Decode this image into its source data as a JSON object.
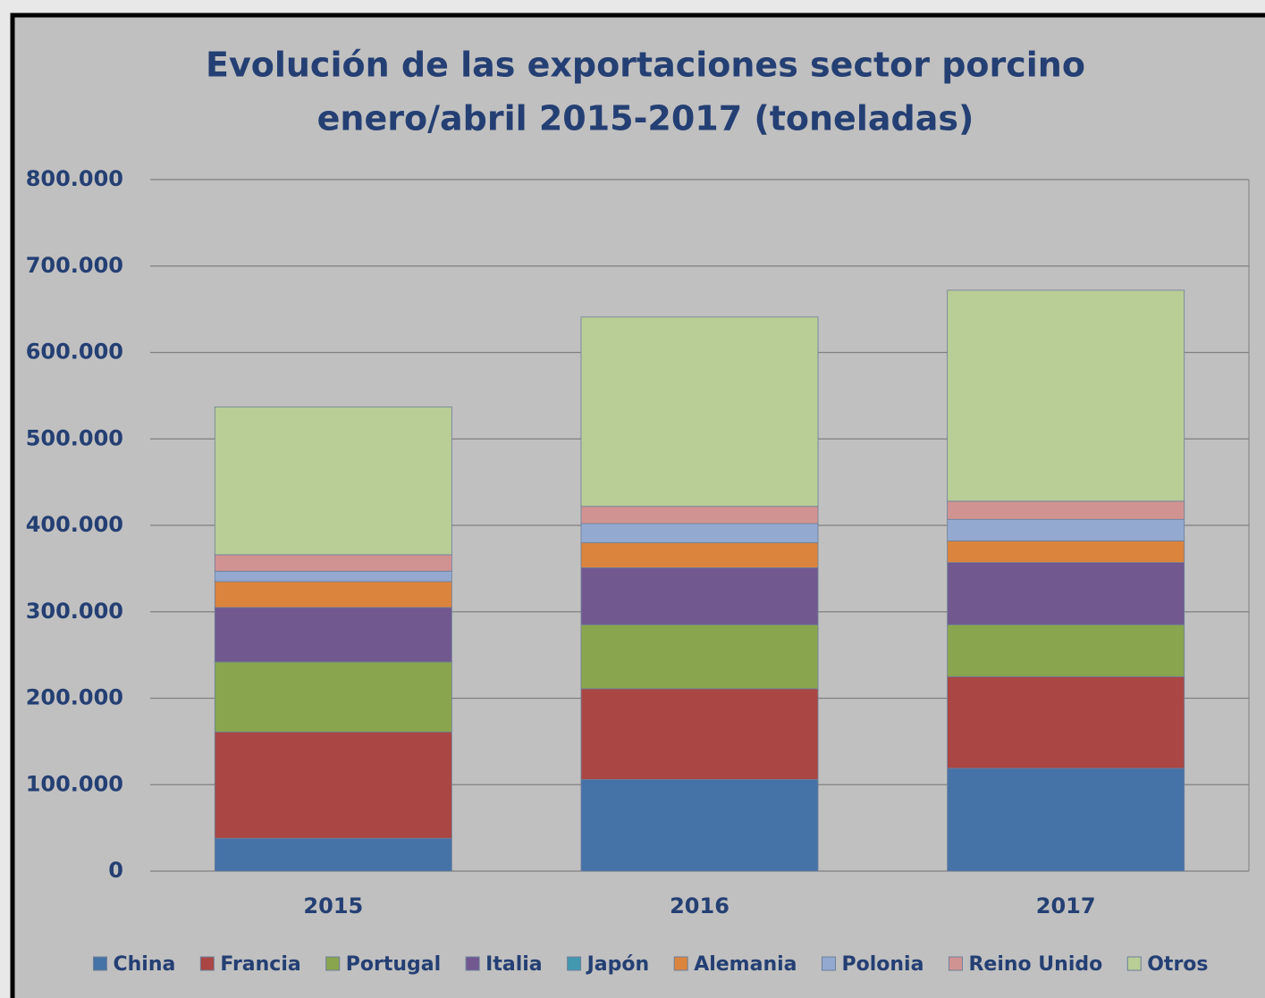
{
  "chart_data": {
    "type": "stacked_bar",
    "title": [
      "Evolución de las exportaciones sector porcino",
      "enero/abril 2015-2017 (toneladas)"
    ],
    "categories": [
      "2015",
      "2016",
      "2017"
    ],
    "series": [
      {
        "name": "China",
        "color": "#4572a7",
        "values": [
          38000,
          106000,
          119000
        ]
      },
      {
        "name": "Francia",
        "color": "#aa4643",
        "values": [
          123000,
          105000,
          106000
        ]
      },
      {
        "name": "Portugal",
        "color": "#89a54e",
        "values": [
          81000,
          74000,
          60000
        ]
      },
      {
        "name": "Italia",
        "color": "#71588f",
        "values": [
          63000,
          66000,
          72000
        ]
      },
      {
        "name": "Japón",
        "color": "#4198af",
        "values": [
          0,
          0,
          0
        ]
      },
      {
        "name": "Alemania",
        "color": "#db843d",
        "values": [
          30000,
          29000,
          25000
        ]
      },
      {
        "name": "Polonia",
        "color": "#93a9cf",
        "values": [
          12000,
          22000,
          25000
        ]
      },
      {
        "name": "Reino Unido",
        "color": "#d19392",
        "values": [
          19000,
          20000,
          21000
        ]
      },
      {
        "name": "Otros",
        "color": "#b9cd96",
        "values": [
          171000,
          219000,
          244000
        ]
      }
    ],
    "ylim": [
      0,
      800000
    ],
    "yticks": [
      0,
      {
        "value": 100000,
        "label": "100.000"
      },
      {
        "value": 200000,
        "label": "200.000"
      },
      {
        "value": 300000,
        "label": "300.000"
      },
      {
        "value": 400000,
        "label": "400.000"
      },
      {
        "value": 500000,
        "label": "500.000"
      },
      {
        "value": 600000,
        "label": "600.000"
      },
      {
        "value": 700000,
        "label": "700.000"
      },
      {
        "value": 800000,
        "label": "800.000"
      }
    ],
    "grid": true,
    "legend": "bottom"
  }
}
